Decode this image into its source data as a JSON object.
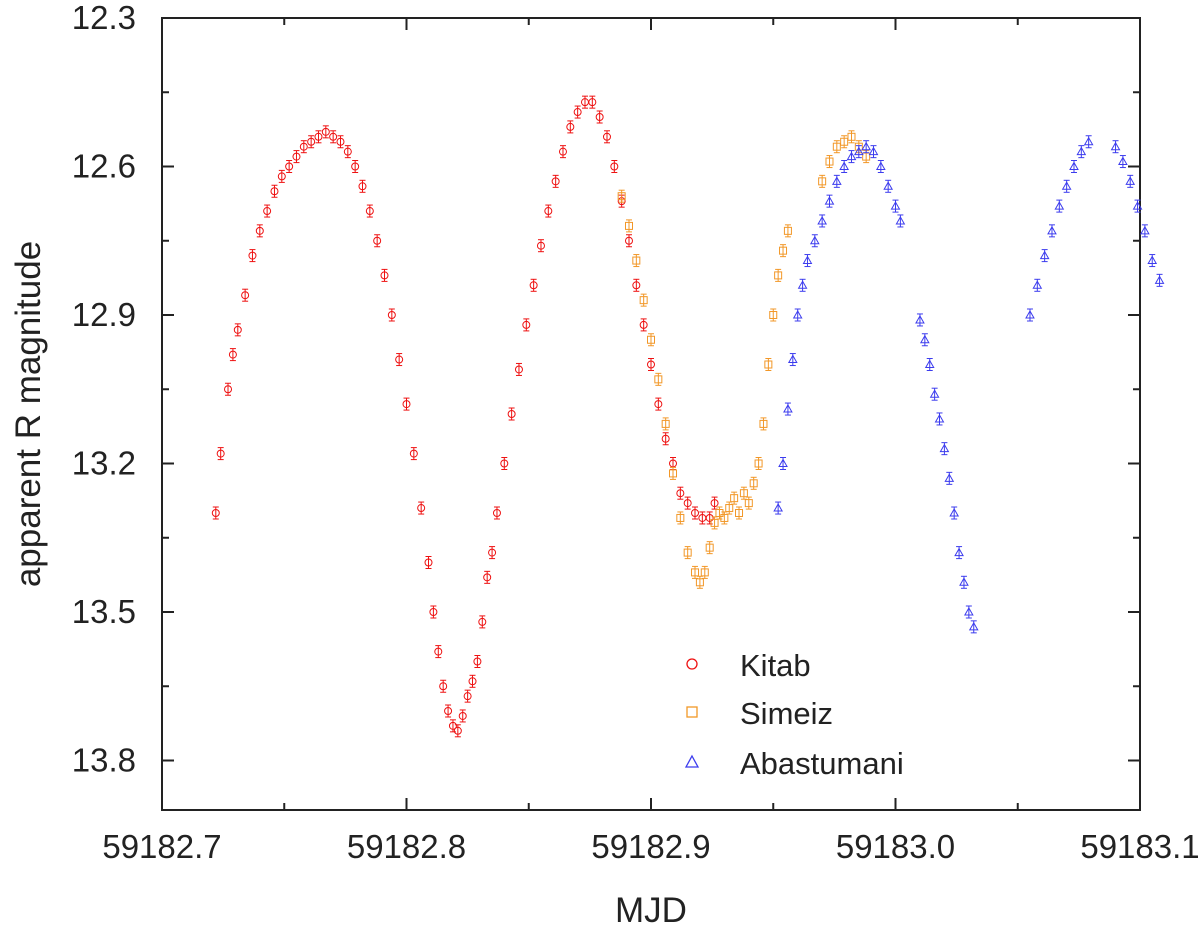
{
  "chart_data": {
    "type": "scatter",
    "title": "",
    "xlabel": "MJD",
    "ylabel": "apparent R magnitude",
    "xlim": [
      59182.7,
      59183.1
    ],
    "ylim": [
      12.3,
      13.9
    ],
    "y_inverted": true,
    "x_ticks": [
      59182.7,
      59182.8,
      59182.9,
      59183.0,
      59183.1
    ],
    "x_tick_labels": [
      "59182.7",
      "59182.8",
      "59182.9",
      "59183.0",
      "59183.1"
    ],
    "y_ticks": [
      12.3,
      12.6,
      12.9,
      13.2,
      13.5,
      13.8
    ],
    "y_tick_labels": [
      "12.3",
      "12.6",
      "12.9",
      "13.2",
      "13.5",
      "13.8"
    ],
    "legend_position": "bottom-right",
    "series": [
      {
        "name": "Kitab",
        "color": "#ee1111",
        "marker": "circle",
        "points": [
          [
            59182.722,
            13.3
          ],
          [
            59182.724,
            13.18
          ],
          [
            59182.727,
            13.05
          ],
          [
            59182.729,
            12.98
          ],
          [
            59182.731,
            12.93
          ],
          [
            59182.734,
            12.86
          ],
          [
            59182.737,
            12.78
          ],
          [
            59182.74,
            12.73
          ],
          [
            59182.743,
            12.69
          ],
          [
            59182.746,
            12.65
          ],
          [
            59182.749,
            12.62
          ],
          [
            59182.752,
            12.6
          ],
          [
            59182.755,
            12.58
          ],
          [
            59182.758,
            12.56
          ],
          [
            59182.761,
            12.55
          ],
          [
            59182.764,
            12.54
          ],
          [
            59182.767,
            12.53
          ],
          [
            59182.77,
            12.54
          ],
          [
            59182.773,
            12.55
          ],
          [
            59182.776,
            12.57
          ],
          [
            59182.779,
            12.6
          ],
          [
            59182.782,
            12.64
          ],
          [
            59182.785,
            12.69
          ],
          [
            59182.788,
            12.75
          ],
          [
            59182.791,
            12.82
          ],
          [
            59182.794,
            12.9
          ],
          [
            59182.797,
            12.99
          ],
          [
            59182.8,
            13.08
          ],
          [
            59182.803,
            13.18
          ],
          [
            59182.806,
            13.29
          ],
          [
            59182.809,
            13.4
          ],
          [
            59182.811,
            13.5
          ],
          [
            59182.813,
            13.58
          ],
          [
            59182.815,
            13.65
          ],
          [
            59182.817,
            13.7
          ],
          [
            59182.819,
            13.73
          ],
          [
            59182.821,
            13.74
          ],
          [
            59182.823,
            13.71
          ],
          [
            59182.825,
            13.67
          ],
          [
            59182.827,
            13.64
          ],
          [
            59182.829,
            13.6
          ],
          [
            59182.831,
            13.52
          ],
          [
            59182.833,
            13.43
          ],
          [
            59182.835,
            13.38
          ],
          [
            59182.837,
            13.3
          ],
          [
            59182.84,
            13.2
          ],
          [
            59182.843,
            13.1
          ],
          [
            59182.846,
            13.01
          ],
          [
            59182.849,
            12.92
          ],
          [
            59182.852,
            12.84
          ],
          [
            59182.855,
            12.76
          ],
          [
            59182.858,
            12.69
          ],
          [
            59182.861,
            12.63
          ],
          [
            59182.864,
            12.57
          ],
          [
            59182.867,
            12.52
          ],
          [
            59182.87,
            12.49
          ],
          [
            59182.873,
            12.47
          ],
          [
            59182.876,
            12.47
          ],
          [
            59182.879,
            12.5
          ],
          [
            59182.882,
            12.54
          ],
          [
            59182.885,
            12.6
          ],
          [
            59182.888,
            12.67
          ],
          [
            59182.891,
            12.75
          ],
          [
            59182.894,
            12.84
          ],
          [
            59182.897,
            12.92
          ],
          [
            59182.9,
            13.0
          ],
          [
            59182.903,
            13.08
          ],
          [
            59182.906,
            13.15
          ],
          [
            59182.909,
            13.2
          ],
          [
            59182.912,
            13.26
          ],
          [
            59182.915,
            13.28
          ],
          [
            59182.918,
            13.3
          ],
          [
            59182.921,
            13.31
          ],
          [
            59182.924,
            13.31
          ],
          [
            59182.926,
            13.28
          ]
        ]
      },
      {
        "name": "Simeiz",
        "color": "#f29727",
        "marker": "square",
        "points": [
          [
            59182.888,
            12.66
          ],
          [
            59182.891,
            12.72
          ],
          [
            59182.894,
            12.79
          ],
          [
            59182.897,
            12.87
          ],
          [
            59182.9,
            12.95
          ],
          [
            59182.903,
            13.03
          ],
          [
            59182.906,
            13.12
          ],
          [
            59182.909,
            13.22
          ],
          [
            59182.912,
            13.31
          ],
          [
            59182.915,
            13.38
          ],
          [
            59182.918,
            13.42
          ],
          [
            59182.92,
            13.44
          ],
          [
            59182.922,
            13.42
          ],
          [
            59182.924,
            13.37
          ],
          [
            59182.926,
            13.32
          ],
          [
            59182.928,
            13.3
          ],
          [
            59182.93,
            13.31
          ],
          [
            59182.932,
            13.29
          ],
          [
            59182.934,
            13.27
          ],
          [
            59182.936,
            13.3
          ],
          [
            59182.938,
            13.26
          ],
          [
            59182.94,
            13.28
          ],
          [
            59182.942,
            13.24
          ],
          [
            59182.944,
            13.2
          ],
          [
            59182.946,
            13.12
          ],
          [
            59182.948,
            13.0
          ],
          [
            59182.95,
            12.9
          ],
          [
            59182.952,
            12.82
          ],
          [
            59182.954,
            12.77
          ],
          [
            59182.956,
            12.73
          ],
          [
            59182.97,
            12.63
          ],
          [
            59182.973,
            12.59
          ],
          [
            59182.976,
            12.56
          ],
          [
            59182.979,
            12.55
          ],
          [
            59182.982,
            12.54
          ],
          [
            59182.985,
            12.56
          ],
          [
            59182.988,
            12.58
          ]
        ]
      },
      {
        "name": "Abastumani",
        "color": "#3c3cee",
        "marker": "triangle",
        "points": [
          [
            59182.952,
            13.29
          ],
          [
            59182.954,
            13.2
          ],
          [
            59182.956,
            13.09
          ],
          [
            59182.958,
            12.99
          ],
          [
            59182.96,
            12.9
          ],
          [
            59182.962,
            12.84
          ],
          [
            59182.964,
            12.79
          ],
          [
            59182.967,
            12.75
          ],
          [
            59182.97,
            12.71
          ],
          [
            59182.973,
            12.67
          ],
          [
            59182.976,
            12.63
          ],
          [
            59182.979,
            12.6
          ],
          [
            59182.982,
            12.58
          ],
          [
            59182.985,
            12.57
          ],
          [
            59182.988,
            12.56
          ],
          [
            59182.991,
            12.57
          ],
          [
            59182.994,
            12.6
          ],
          [
            59182.997,
            12.64
          ],
          [
            59183.0,
            12.68
          ],
          [
            59183.002,
            12.71
          ],
          [
            59183.01,
            12.91
          ],
          [
            59183.012,
            12.95
          ],
          [
            59183.014,
            13.0
          ],
          [
            59183.016,
            13.06
          ],
          [
            59183.018,
            13.11
          ],
          [
            59183.02,
            13.17
          ],
          [
            59183.022,
            13.23
          ],
          [
            59183.024,
            13.3
          ],
          [
            59183.026,
            13.38
          ],
          [
            59183.028,
            13.44
          ],
          [
            59183.03,
            13.5
          ],
          [
            59183.032,
            13.53
          ],
          [
            59183.055,
            12.9
          ],
          [
            59183.058,
            12.84
          ],
          [
            59183.061,
            12.78
          ],
          [
            59183.064,
            12.73
          ],
          [
            59183.067,
            12.68
          ],
          [
            59183.07,
            12.64
          ],
          [
            59183.073,
            12.6
          ],
          [
            59183.076,
            12.57
          ],
          [
            59183.079,
            12.55
          ],
          [
            59183.09,
            12.56
          ],
          [
            59183.093,
            12.59
          ],
          [
            59183.096,
            12.63
          ],
          [
            59183.099,
            12.68
          ],
          [
            59183.102,
            12.73
          ],
          [
            59183.105,
            12.79
          ],
          [
            59183.108,
            12.83
          ]
        ]
      }
    ]
  }
}
